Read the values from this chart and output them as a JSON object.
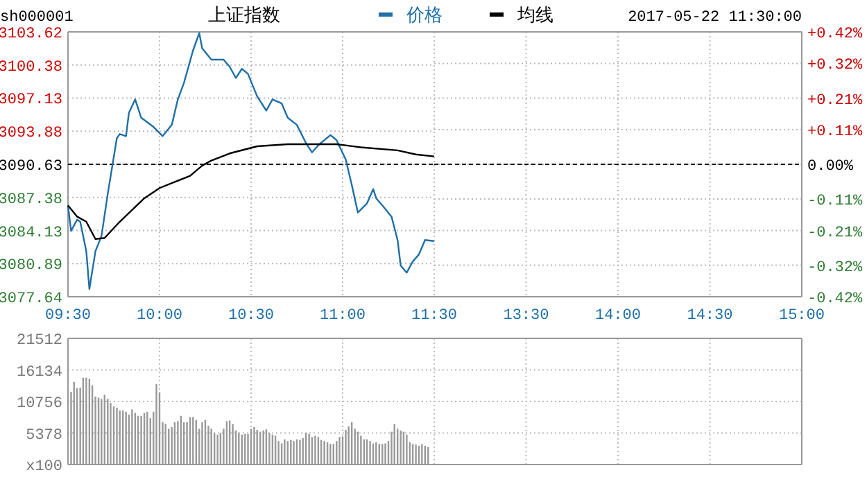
{
  "chart_data": [
    {
      "type": "line",
      "title": "上证指数",
      "annotations": [
        "sh000001"
      ],
      "legend": "top",
      "grid": true,
      "xlim": [
        9.5,
        11.5
      ],
      "xticks": [
        {
          "value": 9.5,
          "label": "09:30"
        },
        {
          "value": 10,
          "label": "10:00"
        },
        {
          "value": 10.5,
          "label": "10:30"
        },
        {
          "value": 11,
          "label": "11:00"
        },
        {
          "value": 11.5,
          "label": "11:30"
        }
      ],
      "ylim": [
        3077.64,
        3103.62
      ],
      "yticks": [
        3077.64,
        3080.89,
        3084.13,
        3087.38,
        3090.63,
        3093.88,
        3097.13,
        3100.38,
        3103.62
      ],
      "ref_lines": [
        {
          "axis": "y",
          "value": 3090.63,
          "color": "#000000",
          "line_style": "dashed"
        }
      ],
      "series": [
        {
          "name": "价格",
          "color": "#1f6fa8",
          "x": [
            9.5,
            9.517,
            9.55,
            9.567,
            9.6,
            9.617,
            9.65,
            9.683,
            9.717,
            9.767,
            9.783,
            9.817,
            9.833,
            9.867,
            9.9,
            9.967,
            10.017,
            10.067,
            10.1,
            10.133,
            10.183,
            10.217,
            10.233,
            10.283,
            10.35,
            10.383,
            10.417,
            10.45,
            10.483,
            10.533,
            10.583,
            10.617,
            10.667,
            10.7,
            10.75,
            10.8,
            10.833,
            10.867,
            10.933,
            10.967,
            11.017,
            11.05,
            11.083,
            11.133,
            11.167,
            11.183,
            11.217,
            11.267,
            11.3,
            11.317,
            11.35,
            11.383,
            11.417,
            11.45,
            11.5
          ],
          "values": [
            3086.6,
            3084.1,
            3085.2,
            3085.0,
            3082.1,
            3078.4,
            3082.1,
            3083.6,
            3087.7,
            3093.2,
            3093.6,
            3093.4,
            3095.7,
            3097.0,
            3095.2,
            3094.3,
            3093.4,
            3094.5,
            3097.0,
            3098.6,
            3101.8,
            3103.5,
            3102.0,
            3100.9,
            3100.9,
            3100.2,
            3099.1,
            3100.0,
            3099.5,
            3097.3,
            3095.9,
            3097.0,
            3096.6,
            3095.2,
            3094.5,
            3092.7,
            3091.8,
            3092.5,
            3093.5,
            3093.0,
            3091.1,
            3088.6,
            3085.9,
            3086.8,
            3088.2,
            3087.3,
            3086.6,
            3085.5,
            3083.2,
            3080.7,
            3080.0,
            3081.1,
            3081.8,
            3083.2,
            3083.1
          ]
        },
        {
          "name": "均线",
          "color": "#000000",
          "x": [
            9.5,
            9.55,
            9.6,
            9.65,
            9.7,
            9.783,
            9.917,
            10,
            10.083,
            10.167,
            10.233,
            10.283,
            10.383,
            10.533,
            10.7,
            10.967,
            11.1,
            11.3,
            11.4,
            11.5
          ],
          "values": [
            3086.6,
            3085.5,
            3085.0,
            3083.3,
            3083.4,
            3085.0,
            3087.3,
            3088.3,
            3088.9,
            3089.5,
            3090.5,
            3091.0,
            3091.7,
            3092.4,
            3092.6,
            3092.6,
            3092.3,
            3092.0,
            3091.6,
            3091.4
          ]
        }
      ]
    },
    {
      "type": "line",
      "annotations": [
        "2017-05-22 11:30:00"
      ],
      "grid": true,
      "xlim": [
        13,
        15
      ],
      "xticks": [
        {
          "value": 13.5,
          "label": "13:30"
        },
        {
          "value": 14,
          "label": "14:00"
        },
        {
          "value": 14.5,
          "label": "14:30"
        },
        {
          "value": 15,
          "label": "15:00"
        }
      ],
      "y2lim": [
        -0.42,
        0.42
      ],
      "y2ticks": [
        {
          "value": -0.42,
          "label": "-0.42%"
        },
        {
          "value": -0.32,
          "label": "-0.32%"
        },
        {
          "value": -0.21,
          "label": "-0.21%"
        },
        {
          "value": -0.11,
          "label": "-0.11%"
        },
        {
          "value": 0,
          "label": "0.00%"
        },
        {
          "value": 0.11,
          "label": "+0.11%"
        },
        {
          "value": 0.21,
          "label": "+0.21%"
        },
        {
          "value": 0.32,
          "label": "+0.32%"
        },
        {
          "value": 0.42,
          "label": "+0.42%"
        }
      ],
      "ref_lines": [
        {
          "axis": "y2",
          "value": 0,
          "color": "#000000",
          "line_style": "dashed"
        }
      ]
    },
    {
      "type": "bar",
      "color": "#999999",
      "grid": true,
      "tick_labels": "y",
      "xlim": [
        9.5,
        11.5
      ],
      "xticks": [
        {
          "value": 9.5,
          "label": null
        },
        {
          "value": 10,
          "label": null
        },
        {
          "value": 10.5,
          "label": null
        },
        {
          "value": 11,
          "label": null
        },
        {
          "value": 11.5,
          "label": null
        }
      ],
      "ylim": [
        0,
        21512
      ],
      "yticks": [
        {
          "value": 0,
          "label": "x100"
        },
        5378,
        10756,
        16134,
        21512
      ],
      "x": [
        9.517,
        9.533,
        9.55,
        9.567,
        9.583,
        9.6,
        9.617,
        9.633,
        9.65,
        9.667,
        9.683,
        9.7,
        9.717,
        9.733,
        9.75,
        9.767,
        9.783,
        9.8,
        9.817,
        9.833,
        9.85,
        9.867,
        9.883,
        9.9,
        9.917,
        9.933,
        9.95,
        9.967,
        9.983,
        10,
        10.017,
        10.033,
        10.05,
        10.067,
        10.083,
        10.1,
        10.117,
        10.133,
        10.15,
        10.167,
        10.183,
        10.2,
        10.217,
        10.233,
        10.25,
        10.267,
        10.283,
        10.3,
        10.317,
        10.333,
        10.35,
        10.367,
        10.383,
        10.4,
        10.417,
        10.433,
        10.45,
        10.467,
        10.483,
        10.5,
        10.517,
        10.533,
        10.55,
        10.567,
        10.583,
        10.6,
        10.617,
        10.633,
        10.65,
        10.667,
        10.683,
        10.7,
        10.717,
        10.733,
        10.75,
        10.767,
        10.783,
        10.8,
        10.817,
        10.833,
        10.85,
        10.867,
        10.883,
        10.9,
        10.917,
        10.933,
        10.95,
        10.967,
        10.983,
        11,
        11.017,
        11.033,
        11.05,
        11.067,
        11.083,
        11.1,
        11.117,
        11.133,
        11.15,
        11.167,
        11.183,
        11.2,
        11.217,
        11.233,
        11.25,
        11.267,
        11.283,
        11.3,
        11.317,
        11.333,
        11.35,
        11.367,
        11.383,
        11.4,
        11.417,
        11.433,
        11.45,
        11.467
      ],
      "values": [
        12400,
        14100,
        13000,
        13100,
        14800,
        14800,
        14600,
        13500,
        11600,
        11400,
        11200,
        11900,
        11200,
        10500,
        9900,
        9700,
        9200,
        9200,
        9000,
        8500,
        9400,
        8800,
        8300,
        8300,
        8800,
        9000,
        7900,
        9000,
        13700,
        12300,
        7200,
        6900,
        6100,
        6400,
        7200,
        7400,
        8300,
        7200,
        7200,
        8100,
        8100,
        7600,
        6100,
        7200,
        7600,
        6600,
        6100,
        5400,
        5100,
        5400,
        6100,
        7400,
        7500,
        6900,
        5800,
        5400,
        5100,
        5200,
        5200,
        6100,
        6400,
        5900,
        5600,
        5800,
        6000,
        5400,
        5100,
        4900,
        4000,
        3600,
        4300,
        4000,
        4200,
        4000,
        4300,
        4200,
        4500,
        5400,
        5200,
        4700,
        4900,
        4700,
        4200,
        4000,
        3800,
        3500,
        3500,
        4000,
        4700,
        4800,
        5900,
        6500,
        7200,
        6100,
        5600,
        4900,
        4300,
        4300,
        4000,
        3600,
        3800,
        3500,
        3500,
        3600,
        4000,
        5600,
        6900,
        6100,
        5800,
        5600,
        5100,
        3800,
        3500,
        3400,
        3200,
        3500,
        3200,
        3000
      ]
    },
    {
      "type": "bar",
      "grid": true,
      "tick_labels": false,
      "xlim": [
        13,
        15
      ],
      "xticks": [
        {
          "value": 13.5,
          "label": null
        },
        {
          "value": 14,
          "label": null
        },
        {
          "value": 14.5,
          "label": null
        },
        {
          "value": 15,
          "label": null
        }
      ],
      "ylim": [
        0,
        21512
      ],
      "yticks": [
        {
          "value": 0,
          "label": null
        },
        {
          "value": 5378,
          "label": null
        },
        {
          "value": 10756,
          "label": null
        },
        {
          "value": 16134,
          "label": null
        },
        {
          "value": 21512,
          "label": null
        }
      ]
    }
  ]
}
